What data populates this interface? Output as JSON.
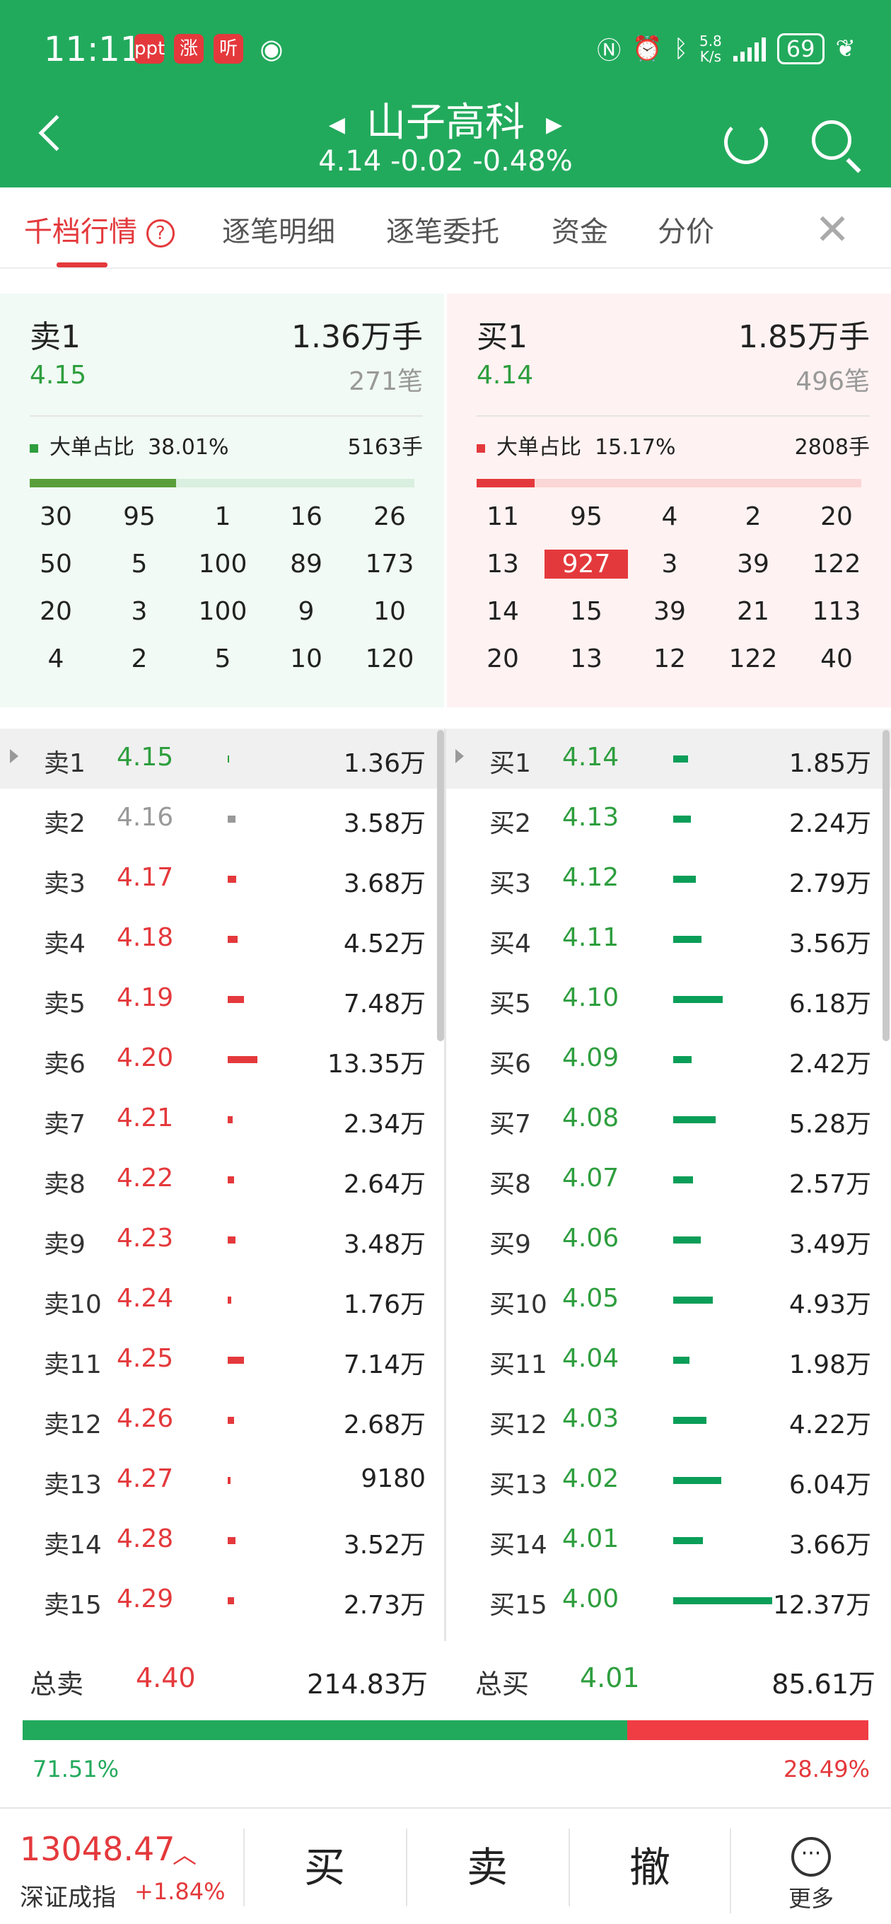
{
  "status": {
    "time": "11:11",
    "speed": "5.8\nK/s",
    "battery": "69",
    "app_icons": [
      "ppt",
      "涨",
      "听"
    ]
  },
  "header": {
    "title": "山子高科",
    "price": "4.14",
    "change": "-0.02",
    "pct": "-0.48%"
  },
  "tabs": [
    {
      "label": "千档行情"
    },
    {
      "label": "逐笔明细"
    },
    {
      "label": "逐笔委托"
    },
    {
      "label": "资金"
    },
    {
      "label": "分价"
    }
  ],
  "sell_panel": {
    "label": "卖1",
    "volume": "1.36万手",
    "price": "4.15",
    "orders": "271笔",
    "big_label": "大单占比",
    "big_pct": "38.01%",
    "big_vol": "5163手",
    "bar_fraction": 0.38,
    "grid": [
      "30",
      "95",
      "1",
      "16",
      "26",
      "50",
      "5",
      "100",
      "89",
      "173",
      "20",
      "3",
      "100",
      "9",
      "10",
      "4",
      "2",
      "5",
      "10",
      "120"
    ]
  },
  "buy_panel": {
    "label": "买1",
    "volume": "1.85万手",
    "price": "4.14",
    "orders": "496笔",
    "big_label": "大单占比",
    "big_pct": "15.17%",
    "big_vol": "2808手",
    "bar_fraction": 0.15,
    "grid": [
      "11",
      "95",
      "4",
      "2",
      "20",
      "13",
      "927",
      "3",
      "39",
      "122",
      "14",
      "15",
      "39",
      "21",
      "113",
      "20",
      "13",
      "12",
      "122",
      "40"
    ]
  },
  "sells": [
    {
      "label": "卖1",
      "price": "4.15",
      "vol": "1.36万",
      "bar": 1,
      "color": "green"
    },
    {
      "label": "卖2",
      "price": "4.16",
      "vol": "3.58万",
      "bar": 6,
      "color": "gray"
    },
    {
      "label": "卖3",
      "price": "4.17",
      "vol": "3.68万",
      "bar": 7,
      "color": "red"
    },
    {
      "label": "卖4",
      "price": "4.18",
      "vol": "4.52万",
      "bar": 8,
      "color": "red"
    },
    {
      "label": "卖5",
      "price": "4.19",
      "vol": "7.48万",
      "bar": 13,
      "color": "red"
    },
    {
      "label": "卖6",
      "price": "4.20",
      "vol": "13.35万",
      "bar": 24,
      "color": "red"
    },
    {
      "label": "卖7",
      "price": "4.21",
      "vol": "2.34万",
      "bar": 4,
      "color": "red"
    },
    {
      "label": "卖8",
      "price": "4.22",
      "vol": "2.64万",
      "bar": 5,
      "color": "red"
    },
    {
      "label": "卖9",
      "price": "4.23",
      "vol": "3.48万",
      "bar": 6,
      "color": "red"
    },
    {
      "label": "卖10",
      "price": "4.24",
      "vol": "1.76万",
      "bar": 3,
      "color": "red"
    },
    {
      "label": "卖11",
      "price": "4.25",
      "vol": "7.14万",
      "bar": 13,
      "color": "red"
    },
    {
      "label": "卖12",
      "price": "4.26",
      "vol": "2.68万",
      "bar": 5,
      "color": "red"
    },
    {
      "label": "卖13",
      "price": "4.27",
      "vol": "9180",
      "bar": 2,
      "color": "red"
    },
    {
      "label": "卖14",
      "price": "4.28",
      "vol": "3.52万",
      "bar": 6,
      "color": "red"
    },
    {
      "label": "卖15",
      "price": "4.29",
      "vol": "2.73万",
      "bar": 5,
      "color": "red"
    }
  ],
  "buys": [
    {
      "label": "买1",
      "price": "4.14",
      "vol": "1.85万",
      "bar": 12
    },
    {
      "label": "买2",
      "price": "4.13",
      "vol": "2.24万",
      "bar": 14
    },
    {
      "label": "买3",
      "price": "4.12",
      "vol": "2.79万",
      "bar": 18
    },
    {
      "label": "买4",
      "price": "4.11",
      "vol": "3.56万",
      "bar": 23
    },
    {
      "label": "买5",
      "price": "4.10",
      "vol": "6.18万",
      "bar": 40
    },
    {
      "label": "买6",
      "price": "4.09",
      "vol": "2.42万",
      "bar": 15
    },
    {
      "label": "买7",
      "price": "4.08",
      "vol": "5.28万",
      "bar": 34
    },
    {
      "label": "买8",
      "price": "4.07",
      "vol": "2.57万",
      "bar": 16
    },
    {
      "label": "买9",
      "price": "4.06",
      "vol": "3.49万",
      "bar": 22
    },
    {
      "label": "买10",
      "price": "4.05",
      "vol": "4.93万",
      "bar": 32
    },
    {
      "label": "买11",
      "price": "4.04",
      "vol": "1.98万",
      "bar": 13
    },
    {
      "label": "买12",
      "price": "4.03",
      "vol": "4.22万",
      "bar": 27
    },
    {
      "label": "买13",
      "price": "4.02",
      "vol": "6.04万",
      "bar": 39
    },
    {
      "label": "买14",
      "price": "4.01",
      "vol": "3.66万",
      "bar": 24
    },
    {
      "label": "买15",
      "price": "4.00",
      "vol": "12.37万",
      "bar": 80
    }
  ],
  "totals": {
    "sell_label": "总卖",
    "sell_price": "4.40",
    "sell_vol": "214.83万",
    "buy_label": "总买",
    "buy_price": "4.01",
    "buy_vol": "85.61万",
    "sell_pct": "71.51%",
    "buy_pct": "28.49%",
    "sell_fraction": 0.7151
  },
  "bottom": {
    "index_value": "13048.47",
    "index_name": "深证成指",
    "index_change": "+1.84%",
    "buy": "买",
    "sell": "卖",
    "cancel": "撤",
    "more": "更多"
  },
  "colors": {
    "green": "#22aa5c",
    "red": "#e4393c",
    "gray": "#999999"
  }
}
